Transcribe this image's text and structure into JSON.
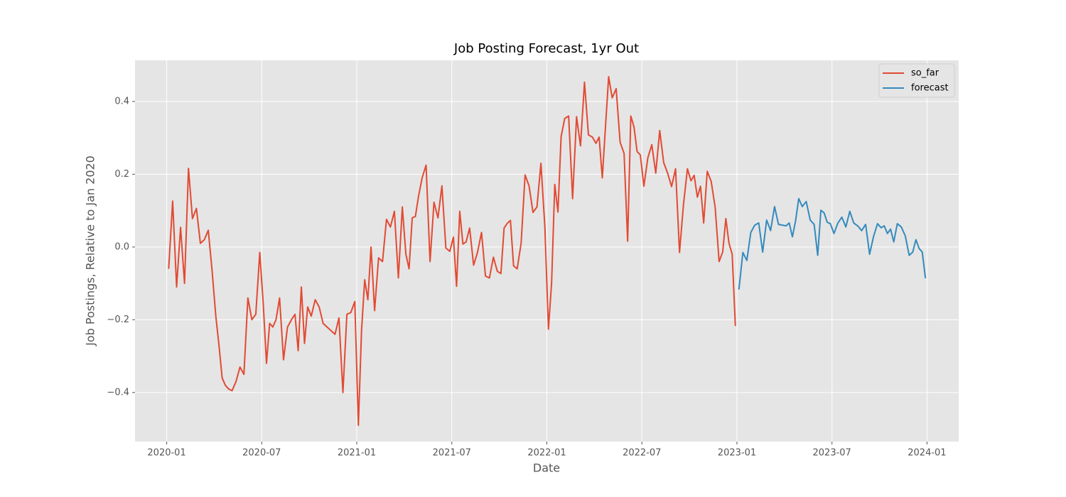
{
  "chart_data": {
    "type": "line",
    "title": "Job Posting Forecast, 1yr Out",
    "x_label": "Date",
    "y_label": "Job Postings, Relative to Jan 2020",
    "xlim": [
      "2019-11",
      "2024-03"
    ],
    "xticks": [
      "2020-01",
      "2020-07",
      "2021-01",
      "2021-07",
      "2022-01",
      "2022-07",
      "2023-01",
      "2023-07",
      "2024-01"
    ],
    "ylim": [
      -0.535,
      0.513
    ],
    "yticks": [
      {
        "value": -0.4,
        "label": "−0.4"
      },
      {
        "value": -0.2,
        "label": "−0.2"
      },
      {
        "value": 0,
        "label": "0.0"
      },
      0.2,
      0.4
    ],
    "grid": true,
    "legend": "upper right",
    "series": [
      {
        "name": "so_far",
        "color": "#E24A33",
        "x": [
          "2020-01",
          "2020-01",
          "2020-01",
          "2020-01",
          "2020-02",
          "2020-02",
          "2020-02",
          "2020-02",
          "2020-03",
          "2020-03",
          "2020-03",
          "2020-03",
          "2020-04",
          "2020-04",
          "2020-04",
          "2020-04",
          "2020-04",
          "2020-05",
          "2020-05",
          "2020-05",
          "2020-05",
          "2020-06",
          "2020-06",
          "2020-06",
          "2020-06",
          "2020-07",
          "2020-07",
          "2020-07",
          "2020-07",
          "2020-07",
          "2020-08",
          "2020-08",
          "2020-08",
          "2020-08",
          "2020-09",
          "2020-09",
          "2020-09",
          "2020-09",
          "2020-09",
          "2020-10",
          "2020-10",
          "2020-10",
          "2020-10",
          "2020-11",
          "2020-11",
          "2020-11",
          "2020-11",
          "2020-12",
          "2020-12",
          "2020-12",
          "2020-12",
          "2021-01",
          "2021-01",
          "2021-01",
          "2021-01",
          "2021-01",
          "2021-02",
          "2021-02",
          "2021-02",
          "2021-02",
          "2021-03",
          "2021-03",
          "2021-03",
          "2021-03",
          "2021-04",
          "2021-04",
          "2021-04",
          "2021-04",
          "2021-04",
          "2021-05",
          "2021-05",
          "2021-05",
          "2021-05",
          "2021-06",
          "2021-06",
          "2021-06",
          "2021-06",
          "2021-07",
          "2021-07",
          "2021-07",
          "2021-07",
          "2021-07",
          "2021-08",
          "2021-08",
          "2021-08",
          "2021-08",
          "2021-09",
          "2021-09",
          "2021-09",
          "2021-09",
          "2021-10",
          "2021-10",
          "2021-10",
          "2021-10",
          "2021-10",
          "2021-11",
          "2021-11",
          "2021-11",
          "2021-11",
          "2021-12",
          "2021-12",
          "2021-12",
          "2021-12",
          "2022-01",
          "2022-01",
          "2022-01",
          "2022-01",
          "2022-01",
          "2022-02",
          "2022-02",
          "2022-02",
          "2022-02",
          "2022-03",
          "2022-03",
          "2022-03",
          "2022-03",
          "2022-04",
          "2022-04",
          "2022-04",
          "2022-04",
          "2022-04",
          "2022-05",
          "2022-05",
          "2022-05",
          "2022-05",
          "2022-06",
          "2022-06",
          "2022-06",
          "2022-06",
          "2022-06",
          "2022-07",
          "2022-07",
          "2022-07",
          "2022-07",
          "2022-08",
          "2022-08",
          "2022-08",
          "2022-08",
          "2022-09",
          "2022-09",
          "2022-09",
          "2022-09",
          "2022-10",
          "2022-10",
          "2022-10",
          "2022-10",
          "2022-10",
          "2022-11",
          "2022-11",
          "2022-11",
          "2022-11",
          "2022-12",
          "2022-12",
          "2022-12",
          "2022-12",
          "2022-12"
        ],
        "values": [
          -0.06,
          0.126,
          -0.11,
          0.054,
          -0.1,
          0.216,
          0.078,
          0.106,
          0.01,
          0.02,
          0.046,
          -0.07,
          -0.19,
          -0.27,
          -0.36,
          -0.38,
          -0.39,
          -0.395,
          -0.37,
          -0.33,
          -0.35,
          -0.14,
          -0.2,
          -0.185,
          -0.015,
          -0.16,
          -0.32,
          -0.21,
          -0.22,
          -0.2,
          -0.14,
          -0.31,
          -0.22,
          -0.2,
          -0.185,
          -0.285,
          -0.11,
          -0.265,
          -0.165,
          -0.19,
          -0.145,
          -0.165,
          -0.21,
          -0.22,
          -0.23,
          -0.24,
          -0.195,
          -0.4,
          -0.185,
          -0.18,
          -0.15,
          -0.49,
          -0.23,
          -0.09,
          -0.145,
          0.0,
          -0.175,
          -0.03,
          -0.04,
          0.076,
          0.055,
          0.098,
          -0.085,
          0.11,
          -0.02,
          -0.06,
          0.08,
          0.084,
          0.14,
          0.19,
          0.225,
          -0.04,
          0.123,
          0.08,
          0.168,
          -0.003,
          -0.012,
          0.027,
          -0.108,
          0.098,
          0.008,
          0.014,
          0.052,
          -0.05,
          -0.014,
          0.04,
          -0.08,
          -0.085,
          -0.028,
          -0.067,
          -0.073,
          0.052,
          0.065,
          0.073,
          -0.052,
          -0.06,
          0.01,
          0.198,
          0.168,
          0.095,
          0.11,
          0.23,
          0.055,
          -0.226,
          -0.098,
          0.172,
          0.096,
          0.303,
          0.353,
          0.36,
          0.133,
          0.358,
          0.278,
          0.453,
          0.308,
          0.302,
          0.285,
          0.302,
          0.19,
          0.33,
          0.468,
          0.41,
          0.435,
          0.288,
          0.257,
          0.016,
          0.36,
          0.33,
          0.262,
          0.253,
          0.167,
          0.245,
          0.281,
          0.203,
          0.32,
          0.232,
          0.203,
          0.166,
          0.215,
          -0.015,
          0.117,
          0.215,
          0.182,
          0.197,
          0.137,
          0.167,
          0.066,
          0.208,
          0.18,
          0.109,
          -0.04,
          -0.014,
          0.078,
          0.01,
          -0.02,
          -0.217
        ]
      },
      {
        "name": "forecast",
        "color": "#348ABD",
        "x": [
          "2023-01",
          "2023-01",
          "2023-01",
          "2023-01",
          "2023-02",
          "2023-02",
          "2023-02",
          "2023-02",
          "2023-03",
          "2023-03",
          "2023-03",
          "2023-03",
          "2023-04",
          "2023-04",
          "2023-04",
          "2023-04",
          "2023-04",
          "2023-05",
          "2023-05",
          "2023-05",
          "2023-05",
          "2023-06",
          "2023-06",
          "2023-06",
          "2023-06",
          "2023-06",
          "2023-07",
          "2023-07",
          "2023-07",
          "2023-07",
          "2023-08",
          "2023-08",
          "2023-08",
          "2023-08",
          "2023-09",
          "2023-09",
          "2023-09",
          "2023-09",
          "2023-10",
          "2023-10",
          "2023-10",
          "2023-10",
          "2023-10",
          "2023-11",
          "2023-11",
          "2023-11",
          "2023-11",
          "2023-12",
          "2023-12",
          "2023-12",
          "2023-12",
          "2023-12"
        ],
        "values": [
          -0.117,
          -0.015,
          -0.037,
          0.04,
          0.06,
          0.066,
          -0.014,
          0.074,
          0.045,
          0.111,
          0.062,
          0.06,
          0.058,
          0.066,
          0.028,
          0.071,
          0.133,
          0.111,
          0.125,
          0.074,
          0.062,
          -0.023,
          0.101,
          0.094,
          0.068,
          0.064,
          0.037,
          0.066,
          0.082,
          0.055,
          0.098,
          0.066,
          0.058,
          0.045,
          0.062,
          -0.02,
          0.029,
          0.064,
          0.053,
          0.058,
          0.037,
          0.049,
          0.014,
          0.064,
          0.055,
          0.031,
          -0.023,
          -0.014,
          0.02,
          -0.004,
          -0.014,
          -0.086
        ]
      }
    ]
  }
}
